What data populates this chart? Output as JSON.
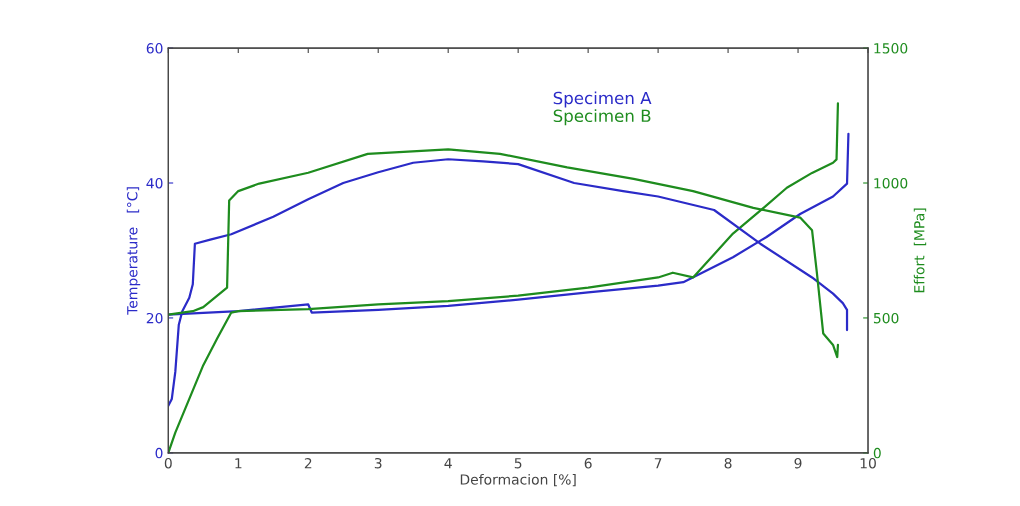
{
  "chart_data": {
    "type": "line",
    "xlabel": "Deformacion [%]",
    "ylabel": "Temperature   [°C]",
    "y2label": "Effort  [MPa]",
    "xlim": [
      0,
      10
    ],
    "xticks": [
      0,
      1,
      2,
      3,
      4,
      5,
      6,
      7,
      8,
      9,
      10
    ],
    "ylim": [
      0,
      60
    ],
    "yticks": [
      0,
      20,
      40,
      60
    ],
    "y2lim": [
      0,
      1500
    ],
    "y2ticks": [
      0,
      500,
      1000,
      1500
    ],
    "grid": false,
    "legend": "top",
    "marker": "none",
    "line_style": "solid",
    "series": [
      {
        "name": "Specimen A",
        "color": "#2b2bc8",
        "x": [
          0,
          1,
          2,
          2.05,
          3,
          4,
          5,
          6,
          7,
          7.36,
          8.07,
          8.55,
          9.03,
          9.5,
          9.7,
          9.72
        ],
        "values": [
          20.5,
          21,
          22,
          20.8,
          21.2,
          21.8,
          22.7,
          23.8,
          24.8,
          25.3,
          29,
          32,
          35.4,
          38,
          39.9,
          47.3
        ]
      },
      {
        "name": "Specimen B",
        "color": "#1e8c1e",
        "x": [
          0,
          0.1,
          0.3,
          0.5,
          0.7,
          0.9,
          1,
          2,
          3,
          4,
          5,
          6,
          7,
          7.21,
          7.5,
          8.07,
          8.46,
          8.84,
          9.2,
          9.5,
          9.55,
          9.57
        ],
        "values": [
          0,
          3,
          8,
          13,
          17,
          20.8,
          21,
          21.3,
          22,
          22.5,
          23.3,
          24.5,
          26,
          26.7,
          26,
          32.5,
          35.9,
          39.3,
          41.5,
          43,
          43.5,
          51.8
        ]
      },
      {
        "color": "#2b2bc8",
        "axis": "y2",
        "x": [
          0,
          0.05,
          0.1,
          0.15,
          0.2,
          0.3,
          0.35,
          0.38,
          0.6,
          0.9,
          1.5,
          2,
          2.5,
          3,
          3.5,
          4,
          4.5,
          5,
          5.8,
          6.5,
          7,
          7.8,
          8.46,
          9.2,
          9.5,
          9.64,
          9.7,
          9.7
        ],
        "values": [
          175,
          200,
          300,
          475,
          525,
          575,
          625,
          775,
          790,
          810,
          875,
          940,
          1000,
          1040,
          1075,
          1088,
          1080,
          1070,
          1000,
          970,
          950,
          900,
          775,
          650,
          590,
          555,
          530,
          455
        ]
      },
      {
        "color": "#1e8c1e",
        "axis": "y2",
        "x": [
          0,
          0.35,
          0.5,
          0.84,
          0.87,
          1,
          1.3,
          2,
          2.85,
          4,
          4.74,
          5.7,
          6.65,
          7.5,
          8.36,
          9.03,
          9.2,
          9.27,
          9.36,
          9.5,
          9.56,
          9.57
        ],
        "values": [
          512,
          525,
          540,
          612,
          935,
          970,
          998,
          1038,
          1108,
          1125,
          1108,
          1058,
          1015,
          970,
          908,
          872,
          825,
          665,
          442,
          400,
          355,
          400
        ]
      }
    ]
  }
}
